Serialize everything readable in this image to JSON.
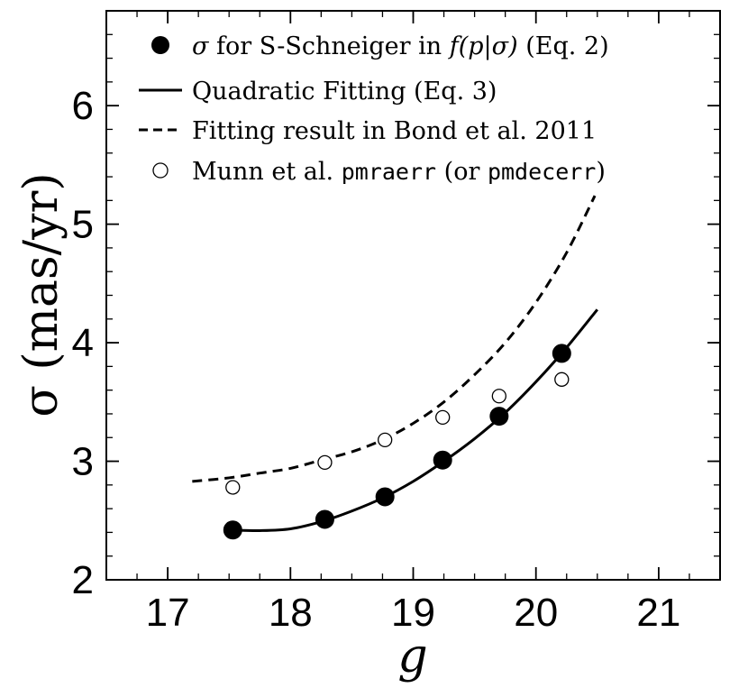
{
  "chart_data": {
    "type": "scatter",
    "xlabel": "g",
    "ylabel": "σ (mas/yr)",
    "xlim": [
      16.5,
      21.5
    ],
    "ylim": [
      2.0,
      6.8
    ],
    "xticks": [
      17,
      18,
      19,
      20,
      21
    ],
    "yticks": [
      2,
      3,
      4,
      5,
      6
    ],
    "x_minor_step": 0.25,
    "y_minor_step": 0.2,
    "grid": false,
    "legend_position": "top-right",
    "legend": [
      {
        "marker": "filled-circle",
        "parts": [
          "σ",
          " for S-Schneiger in ",
          "f(p|σ)",
          " (Eq. 2)"
        ]
      },
      {
        "marker": "solid-line",
        "parts": [
          "Quadratic Fitting (Eq. 3)"
        ]
      },
      {
        "marker": "dashed-line",
        "parts": [
          "Fitting result in Bond et al. 2011"
        ]
      },
      {
        "marker": "open-circle",
        "parts": [
          "Munn et al. ",
          "pmraerr",
          " (or ",
          "pmdecerr",
          ")"
        ]
      }
    ],
    "series": [
      {
        "name": "σ for S-Schneiger in f(p|σ) (Eq. 2)",
        "kind": "scatter-filled",
        "x": [
          17.53,
          18.28,
          18.77,
          19.24,
          19.7,
          20.21
        ],
        "y": [
          2.42,
          2.51,
          2.7,
          3.01,
          3.38,
          3.91
        ]
      },
      {
        "name": "Munn et al. pmraerr (or pmdecerr)",
        "kind": "scatter-open",
        "x": [
          17.53,
          18.28,
          18.77,
          19.24,
          19.7,
          20.21
        ],
        "y": [
          2.78,
          2.99,
          3.18,
          3.37,
          3.55,
          3.69
        ]
      },
      {
        "name": "Quadratic Fitting (Eq. 3)",
        "kind": "line-solid",
        "x": [
          17.53,
          17.75,
          18.0,
          18.25,
          18.5,
          18.75,
          19.0,
          19.25,
          19.5,
          19.75,
          20.0,
          20.25,
          20.5
        ],
        "y": [
          2.42,
          2.415,
          2.43,
          2.49,
          2.58,
          2.69,
          2.83,
          3.0,
          3.19,
          3.41,
          3.67,
          3.96,
          4.28
        ]
      },
      {
        "name": "Fitting result in Bond et al. 2011",
        "kind": "line-dashed",
        "x": [
          17.2,
          17.5,
          17.75,
          18.0,
          18.25,
          18.5,
          18.75,
          19.0,
          19.25,
          19.5,
          19.75,
          20.0,
          20.25,
          20.48
        ],
        "y": [
          2.83,
          2.86,
          2.9,
          2.94,
          3.01,
          3.08,
          3.18,
          3.32,
          3.5,
          3.73,
          4.0,
          4.34,
          4.76,
          5.24
        ]
      }
    ]
  }
}
